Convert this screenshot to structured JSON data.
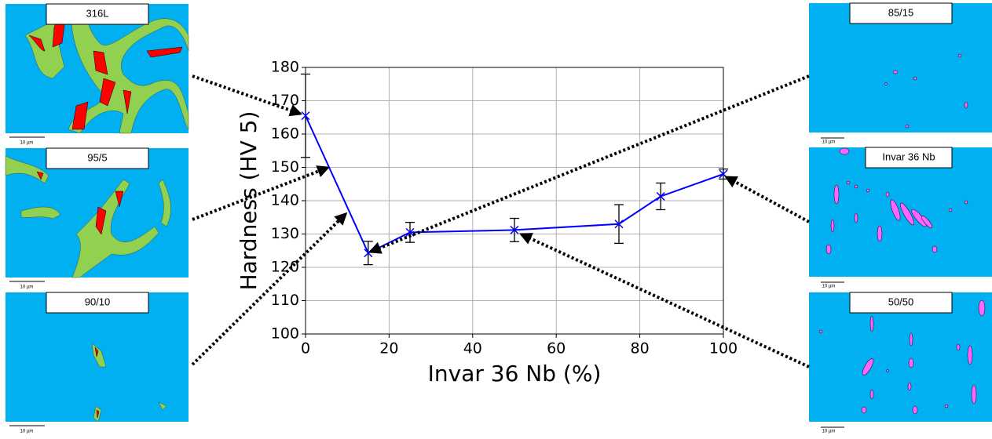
{
  "chart_data": {
    "type": "line",
    "x_label": "Invar 36 Nb (%)",
    "y_label": "Hardness (HV 5)",
    "x": [
      0,
      15,
      25,
      50,
      75,
      85,
      100
    ],
    "values": [
      165.5,
      124.3,
      130.5,
      131.2,
      133,
      141.3,
      148
    ],
    "errors": [
      12.5,
      3.5,
      3,
      3.5,
      5.8,
      4,
      1.5
    ],
    "color": "#0000ff",
    "xlim": [
      0,
      100
    ],
    "xticks": [
      0,
      20,
      40,
      60,
      80,
      100
    ],
    "ylim": [
      100,
      180
    ],
    "yticks": [
      100,
      110,
      120,
      130,
      140,
      150,
      160,
      170,
      180
    ],
    "grid": true
  },
  "panels": [
    {
      "label": "316L",
      "scale": "10 µm"
    },
    {
      "label": "95/5",
      "scale": "10 µm"
    },
    {
      "label": "90/10",
      "scale": "10 µm"
    },
    {
      "label": "85/15",
      "scale": "10 µm"
    },
    {
      "label": "Invar 36 Nb",
      "scale": "10 µm"
    },
    {
      "label": "50/50",
      "scale": "10 µm"
    }
  ]
}
